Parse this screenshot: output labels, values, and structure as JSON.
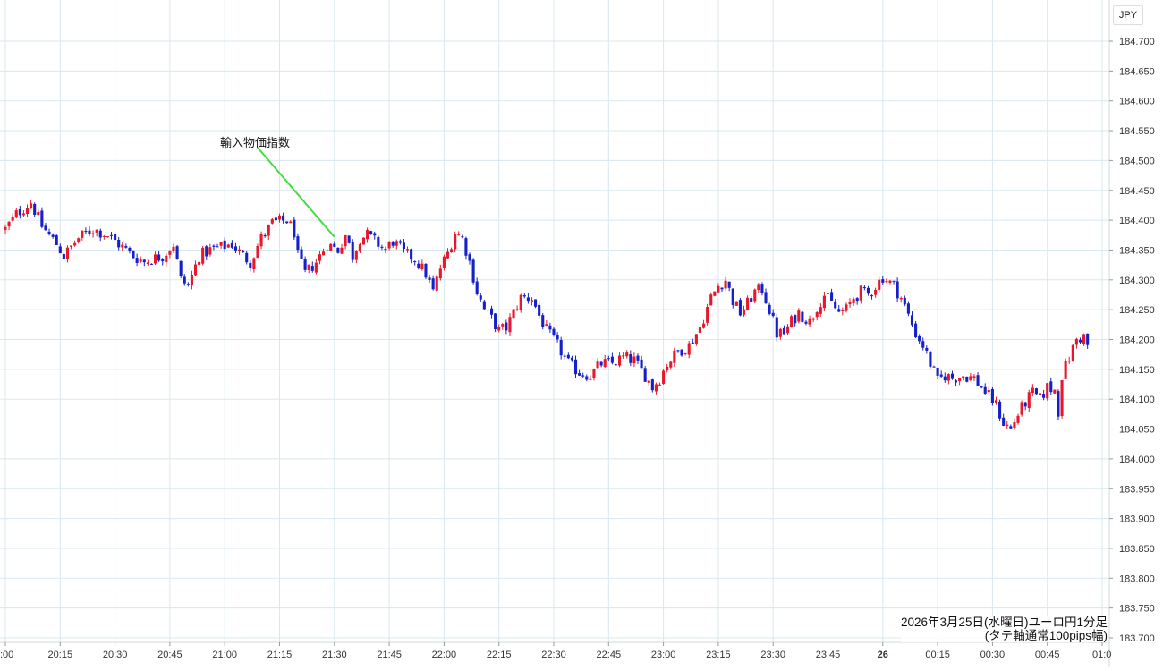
{
  "currency": "JPY",
  "annotation": {
    "label": "輸入物価指数",
    "time": "21:30",
    "price": 184.372
  },
  "caption": {
    "line1": "2026年3月25日(水曜日)ユーロ円1分足",
    "line2": "(タテ軸通常100pips幅)"
  },
  "colors": {
    "up": "#e8172b",
    "down": "#1420c9",
    "grid": "#d8e8ee",
    "annotation_line": "#44dd44",
    "axis_text": "#333333"
  },
  "chart_data": {
    "type": "candlestick",
    "title": "",
    "xlabel": "",
    "ylabel": "",
    "ylim": [
      183.7,
      184.72
    ],
    "yticks": [
      "184.700",
      "184.650",
      "184.600",
      "184.550",
      "184.500",
      "184.450",
      "184.400",
      "184.350",
      "184.300",
      "184.250",
      "184.200",
      "184.150",
      "184.100",
      "184.050",
      "184.000",
      "183.950",
      "183.900",
      "183.850",
      "183.800",
      "183.750",
      "183.700"
    ],
    "xticks": [
      ":00",
      "20:15",
      "20:30",
      "20:45",
      "21:00",
      "21:15",
      "21:30",
      "21:45",
      "22:00",
      "22:15",
      "22:30",
      "22:45",
      "23:00",
      "23:15",
      "23:30",
      "23:45",
      "26",
      "00:15",
      "00:30",
      "00:45",
      "01:0"
    ],
    "x_start": "20:00",
    "interval": "1min",
    "close_path": [
      [
        0,
        184.385
      ],
      [
        3,
        184.41
      ],
      [
        7,
        184.43
      ],
      [
        10,
        184.39
      ],
      [
        14,
        184.36
      ],
      [
        16,
        184.34
      ],
      [
        20,
        184.37
      ],
      [
        24,
        184.385
      ],
      [
        28,
        184.375
      ],
      [
        32,
        184.355
      ],
      [
        35,
        184.34
      ],
      [
        38,
        184.33
      ],
      [
        40,
        184.335
      ],
      [
        43,
        184.34
      ],
      [
        46,
        184.36
      ],
      [
        48,
        184.3
      ],
      [
        50,
        184.29
      ],
      [
        53,
        184.34
      ],
      [
        56,
        184.35
      ],
      [
        59,
        184.355
      ],
      [
        62,
        184.36
      ],
      [
        65,
        184.34
      ],
      [
        67,
        184.33
      ],
      [
        70,
        184.37
      ],
      [
        73,
        184.395
      ],
      [
        77,
        184.4
      ],
      [
        79,
        184.38
      ],
      [
        80,
        184.34
      ],
      [
        82,
        184.31
      ],
      [
        85,
        184.33
      ],
      [
        88,
        184.36
      ],
      [
        91,
        184.35
      ],
      [
        93,
        184.375
      ],
      [
        95,
        184.34
      ],
      [
        97,
        184.37
      ],
      [
        99,
        184.375
      ],
      [
        102,
        184.36
      ],
      [
        104,
        184.35
      ],
      [
        106,
        184.365
      ],
      [
        109,
        184.345
      ],
      [
        112,
        184.335
      ],
      [
        115,
        184.31
      ],
      [
        117,
        184.28
      ],
      [
        119,
        184.32
      ],
      [
        121,
        184.345
      ],
      [
        123,
        184.38
      ],
      [
        125,
        184.37
      ],
      [
        127,
        184.33
      ],
      [
        129,
        184.28
      ],
      [
        131,
        184.25
      ],
      [
        133,
        184.235
      ],
      [
        135,
        184.215
      ],
      [
        137,
        184.22
      ],
      [
        139,
        184.245
      ],
      [
        141,
        184.27
      ],
      [
        144,
        184.27
      ],
      [
        146,
        184.24
      ],
      [
        148,
        184.215
      ],
      [
        151,
        184.19
      ],
      [
        154,
        184.16
      ],
      [
        157,
        184.145
      ],
      [
        160,
        184.14
      ],
      [
        163,
        184.16
      ],
      [
        166,
        184.16
      ],
      [
        169,
        184.17
      ],
      [
        172,
        184.165
      ],
      [
        175,
        184.14
      ],
      [
        177,
        184.12
      ],
      [
        179,
        184.135
      ],
      [
        181,
        184.16
      ],
      [
        184,
        184.18
      ],
      [
        187,
        184.19
      ],
      [
        190,
        184.22
      ],
      [
        193,
        184.27
      ],
      [
        195,
        184.29
      ],
      [
        197,
        184.3
      ],
      [
        199,
        184.265
      ],
      [
        201,
        184.245
      ],
      [
        203,
        184.26
      ],
      [
        205,
        184.28
      ],
      [
        207,
        184.285
      ],
      [
        209,
        184.25
      ],
      [
        211,
        184.21
      ],
      [
        213,
        184.21
      ],
      [
        215,
        184.23
      ],
      [
        217,
        184.245
      ],
      [
        220,
        184.23
      ],
      [
        222,
        184.255
      ],
      [
        224,
        184.275
      ],
      [
        226,
        184.26
      ],
      [
        228,
        184.245
      ],
      [
        230,
        184.25
      ],
      [
        232,
        184.27
      ],
      [
        234,
        184.28
      ],
      [
        236,
        184.275
      ],
      [
        238,
        184.29
      ],
      [
        240,
        184.305
      ],
      [
        243,
        184.29
      ],
      [
        245,
        184.27
      ],
      [
        247,
        184.24
      ],
      [
        249,
        184.21
      ],
      [
        251,
        184.19
      ],
      [
        253,
        184.16
      ],
      [
        255,
        184.13
      ],
      [
        257,
        184.14
      ],
      [
        259,
        184.135
      ],
      [
        262,
        184.14
      ],
      [
        265,
        184.135
      ],
      [
        267,
        184.12
      ],
      [
        269,
        184.105
      ],
      [
        271,
        184.09
      ],
      [
        273,
        184.06
      ],
      [
        275,
        184.05
      ],
      [
        277,
        184.075
      ],
      [
        279,
        184.095
      ],
      [
        281,
        184.11
      ],
      [
        283,
        184.1
      ],
      [
        285,
        184.12
      ],
      [
        287,
        184.115
      ],
      [
        288,
        184.08
      ],
      [
        289,
        184.14
      ],
      [
        291,
        184.17
      ],
      [
        293,
        184.2
      ],
      [
        295,
        184.205
      ],
      [
        296,
        184.19
      ]
    ]
  }
}
